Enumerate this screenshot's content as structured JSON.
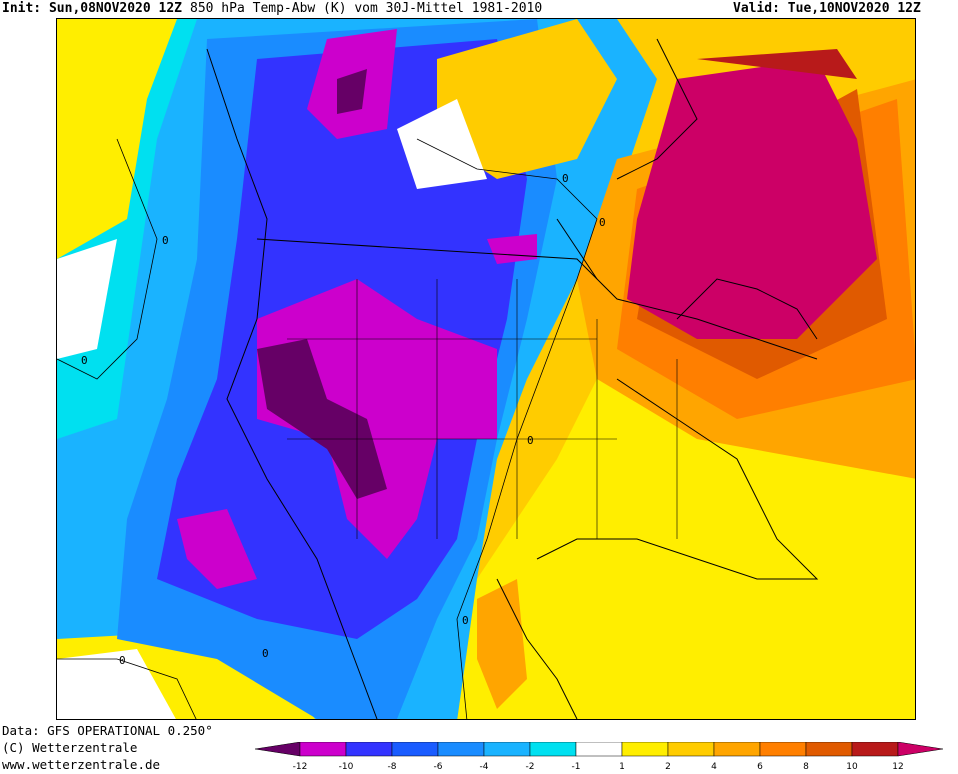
{
  "header": {
    "init": "Init: Sun,08NOV2020 12Z",
    "title": "850 hPa Temp-Abw (K) vom 30J-Mittel 1981-2010",
    "valid": "Valid: Tue,10NOV2020 12Z"
  },
  "footer": {
    "source": "Data: GFS OPERATIONAL 0.250°",
    "copyright": "(C) Wetterzentrale",
    "url": "www.wetterzentrale.de"
  },
  "legend": {
    "ticks": [
      "-12",
      "-10",
      "-8",
      "-6",
      "-4",
      "-2",
      "-1",
      "1",
      "2",
      "4",
      "6",
      "8",
      "10",
      "12"
    ],
    "colors": [
      "#cc00cc",
      "#3333ff",
      "#1a5cff",
      "#1a8cff",
      "#1ab3ff",
      "#00e0f0",
      "#ffffff",
      "#ffee00",
      "#ffcc00",
      "#ffa500",
      "#ff7f00",
      "#e05a00",
      "#b81a1a",
      "#cc0066"
    ],
    "min_color": "#660066",
    "max_color": "#cc0066"
  },
  "map": {
    "contour_labels": [
      "0",
      "0",
      "0",
      "0",
      "0",
      "0",
      "0",
      "0"
    ]
  }
}
